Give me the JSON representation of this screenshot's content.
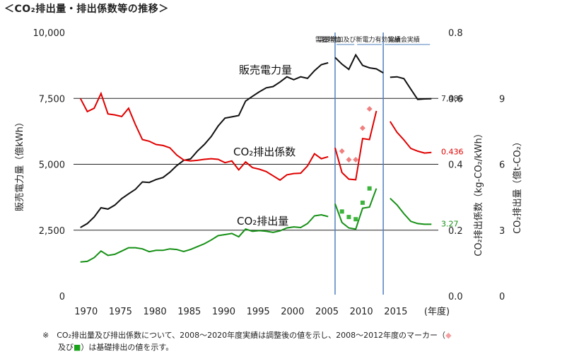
{
  "title": "＜CO₂排出量・排出係数等の推移＞",
  "note": {
    "line1_a": "※　CO₂排出量及び排出係数について、2008～2020年度実績は調整後の値を示し、2008～2012年度のマーカー（",
    "marker_diamond": "◆",
    "line2_a": "及び",
    "marker_square": "■",
    "line2_b": "）は基礎排出の値を示す。"
  },
  "colors": {
    "sales": "#111111",
    "coef": "#e00000",
    "emission": "#159015",
    "period_line": "#4f81bd"
  },
  "chart_data": {
    "type": "line",
    "x_unit": "(年度)",
    "xlim": [
      1969,
      2022
    ],
    "x_ticks": [
      1970,
      1975,
      1980,
      1985,
      1990,
      1995,
      2000,
      2005,
      2010,
      2015
    ],
    "left_axis": {
      "label": "販売電力量（億kWh）",
      "ticks": [
        "0",
        "2,500",
        "5,000",
        "7,500",
        "10,000"
      ],
      "lim": [
        0,
        10000
      ]
    },
    "right_axis1": {
      "label": "CO₂排出係数（kg-CO₂/kWh）",
      "ticks": [
        "0.0",
        "0.2",
        "0.4",
        "0.6",
        "0.8"
      ],
      "lim": [
        0,
        0.8
      ]
    },
    "right_axis2": {
      "label": "CO₂排出量（億t-CO₂）",
      "ticks": [
        "0",
        "3",
        "6",
        "9"
      ],
      "lim": [
        0,
        12
      ]
    },
    "periods": [
      {
        "x": 2007,
        "label": "需要増加"
      },
      {
        "x": 2010,
        "label": "需要増加及び新電力有効実績"
      },
      {
        "x": 2015,
        "label": "協議会実績"
      }
    ],
    "series": [
      {
        "name": "販売電力量",
        "axis": "left",
        "color": "#111111",
        "end_label": "7,486",
        "segments": [
          {
            "x": [
              1970,
              1971,
              1972,
              1973,
              1974,
              1975,
              1976,
              1977,
              1978,
              1979,
              1980,
              1981,
              1982,
              1983,
              1984,
              1985,
              1986,
              1987,
              1988,
              1989,
              1990,
              1991,
              1992,
              1993,
              1994,
              1995,
              1996,
              1997,
              1998,
              1999,
              2000,
              2001,
              2002,
              2003,
              2004,
              2005,
              2006
            ],
            "y": [
              2600,
              2750,
              3000,
              3350,
              3300,
              3450,
              3700,
              3880,
              4050,
              4330,
              4310,
              4420,
              4500,
              4700,
              4950,
              5150,
              5200,
              5500,
              5750,
              6050,
              6450,
              6750,
              6800,
              6850,
              7400,
              7580,
              7750,
              7900,
              7950,
              8120,
              8320,
              8210,
              8320,
              8260,
              8550,
              8780,
              8850
            ]
          },
          {
            "x": [
              2007,
              2008,
              2009,
              2010,
              2011,
              2012,
              2013,
              2014
            ],
            "y": [
              9050,
              8800,
              8600,
              9150,
              8750,
              8660,
              8620,
              8470
            ]
          },
          {
            "x": [
              2015,
              2016,
              2017,
              2018,
              2019,
              2020,
              2021
            ],
            "y": [
              8300,
              8320,
              8250,
              7850,
              7460,
              7480,
              7486
            ]
          }
        ]
      },
      {
        "name": "CO₂排出係数",
        "axis": "right1",
        "color": "#e00000",
        "end_label": "0.436",
        "segments": [
          {
            "x": [
              1970,
              1971,
              1972,
              1973,
              1974,
              1975,
              1976,
              1977,
              1978,
              1979,
              1980,
              1981,
              1982,
              1983,
              1984,
              1985,
              1986,
              1987,
              1988,
              1989,
              1990,
              1991,
              1992,
              1993,
              1994,
              1995,
              1996,
              1997,
              1998,
              1999,
              2000,
              2001,
              2002,
              2003,
              2004,
              2005,
              2006
            ],
            "y": [
              0.6,
              0.56,
              0.57,
              0.615,
              0.553,
              0.55,
              0.545,
              0.57,
              0.52,
              0.475,
              0.47,
              0.46,
              0.457,
              0.45,
              0.428,
              0.413,
              0.41,
              0.412,
              0.415,
              0.417,
              0.415,
              0.405,
              0.41,
              0.383,
              0.407,
              0.39,
              0.385,
              0.378,
              0.365,
              0.352,
              0.368,
              0.372,
              0.373,
              0.395,
              0.432,
              0.417,
              0.423
            ]
          },
          {
            "x": [
              2007,
              2008,
              2009,
              2010,
              2011,
              2012,
              2013
            ],
            "y": [
              0.45,
              0.375,
              0.355,
              0.353,
              0.478,
              0.475,
              0.562
            ]
          },
          {
            "x": [
              2015,
              2016,
              2017,
              2018,
              2019,
              2020,
              2021
            ],
            "y": [
              0.53,
              0.497,
              0.474,
              0.448,
              0.44,
              0.434,
              0.436
            ]
          }
        ],
        "markers": {
          "shape": "diamond",
          "color": "#f08080",
          "x": [
            2008,
            2009,
            2010,
            2011,
            2012
          ],
          "y": [
            0.44,
            0.414,
            0.414,
            0.51,
            0.568
          ]
        }
      },
      {
        "name": "CO₂排出量",
        "axis": "right2",
        "color": "#159015",
        "end_label": "3.27",
        "segments": [
          {
            "x": [
              1970,
              1971,
              1972,
              1973,
              1974,
              1975,
              1976,
              1977,
              1978,
              1979,
              1980,
              1981,
              1982,
              1983,
              1984,
              1985,
              1986,
              1987,
              1988,
              1989,
              1990,
              1991,
              1992,
              1993,
              1994,
              1995,
              1996,
              1997,
              1998,
              1999,
              2000,
              2001,
              2002,
              2003,
              2004,
              2005,
              2006
            ],
            "y": [
              1.55,
              1.58,
              1.75,
              2.05,
              1.85,
              1.9,
              2.05,
              2.2,
              2.2,
              2.15,
              2.02,
              2.08,
              2.08,
              2.15,
              2.12,
              2.03,
              2.12,
              2.25,
              2.38,
              2.55,
              2.75,
              2.8,
              2.85,
              2.7,
              3.05,
              2.95,
              2.98,
              2.95,
              2.9,
              2.97,
              3.1,
              3.15,
              3.12,
              3.3,
              3.65,
              3.7,
              3.62
            ]
          },
          {
            "x": [
              2007,
              2008,
              2009,
              2010,
              2011,
              2012,
              2013
            ],
            "y": [
              4.2,
              3.35,
              3.1,
              3.05,
              4.0,
              4.05,
              4.9
            ]
          },
          {
            "x": [
              2015,
              2016,
              2017,
              2018,
              2019,
              2020,
              2021
            ],
            "y": [
              4.45,
              4.15,
              3.75,
              3.4,
              3.3,
              3.27,
              3.27
            ]
          }
        ],
        "markers": {
          "shape": "square",
          "color": "#3cb43c",
          "x": [
            2008,
            2009,
            2010,
            2011,
            2012
          ],
          "y": [
            3.85,
            3.6,
            3.5,
            4.25,
            4.9
          ]
        }
      }
    ]
  }
}
